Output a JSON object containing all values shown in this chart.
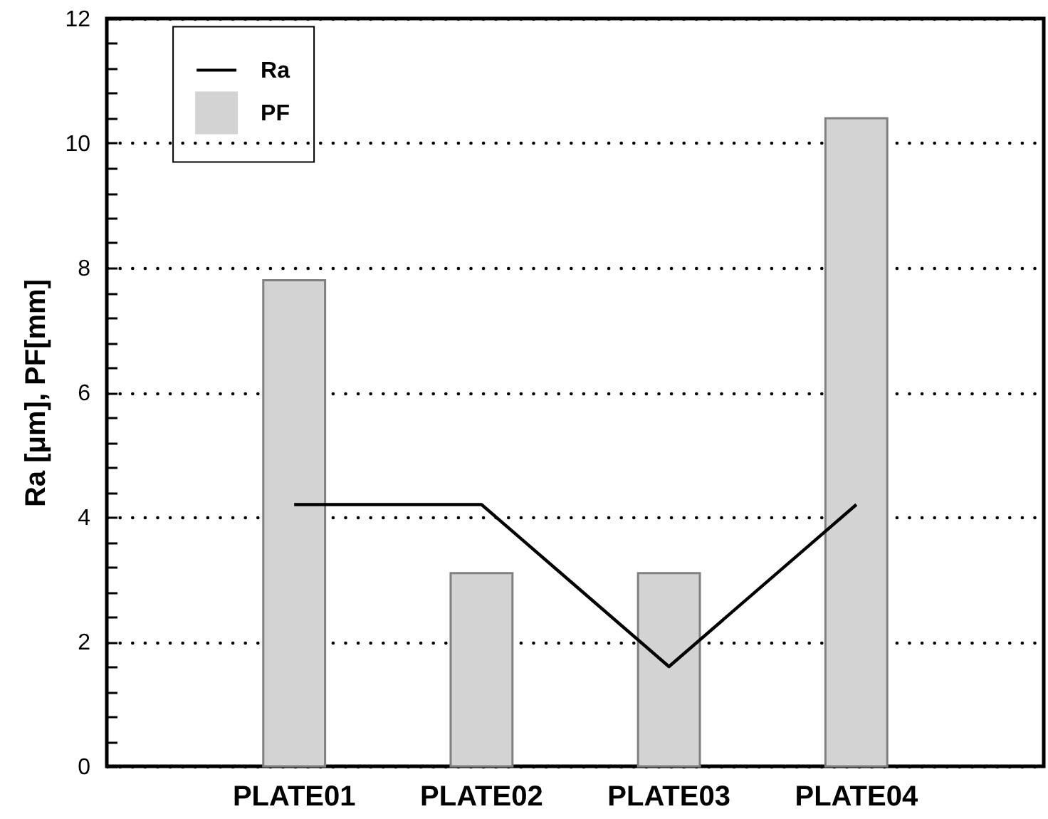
{
  "chart_data": {
    "type": "bar",
    "ylabel": "Ra [μm], PF[mm]",
    "categories": [
      "PLATE01",
      "PLATE02",
      "PLATE03",
      "PLATE04"
    ],
    "series": [
      {
        "name": "Ra",
        "type": "line",
        "color": "#000000",
        "values": [
          4.2,
          4.2,
          1.6,
          4.2
        ]
      },
      {
        "name": "PF",
        "color": "#d3d3d3",
        "values": [
          7.8,
          3.1,
          3.1,
          10.4
        ]
      }
    ],
    "ylim": [
      0,
      12
    ],
    "yticks": [
      0,
      {
        "value": 0.4,
        "label": null
      },
      {
        "value": 0.8,
        "label": null
      },
      {
        "value": 1.2,
        "label": null
      },
      {
        "value": 1.6,
        "label": null
      },
      2,
      {
        "value": 2.4,
        "label": null
      },
      {
        "value": 2.8,
        "label": null
      },
      {
        "value": 3.2,
        "label": null
      },
      {
        "value": 3.6,
        "label": null
      },
      4,
      {
        "value": 4.4,
        "label": null
      },
      {
        "value": 4.8,
        "label": null
      },
      {
        "value": 5.2,
        "label": null
      },
      {
        "value": 5.6,
        "label": null
      },
      6,
      {
        "value": 6.4,
        "label": null
      },
      {
        "value": 6.8,
        "label": null
      },
      {
        "value": 7.2,
        "label": null
      },
      {
        "value": 7.6,
        "label": null
      },
      8,
      {
        "value": 8.4,
        "label": null
      },
      {
        "value": 8.8,
        "label": null
      },
      {
        "value": 9.2,
        "label": null
      },
      {
        "value": 9.6,
        "label": null
      },
      10,
      {
        "value": 10.4,
        "label": null
      },
      {
        "value": 10.8,
        "label": null
      },
      {
        "value": 11.2,
        "label": null
      },
      {
        "value": 11.6,
        "label": null
      },
      12
    ],
    "grid": "y",
    "legend": "top left",
    "line_style": "solid"
  }
}
